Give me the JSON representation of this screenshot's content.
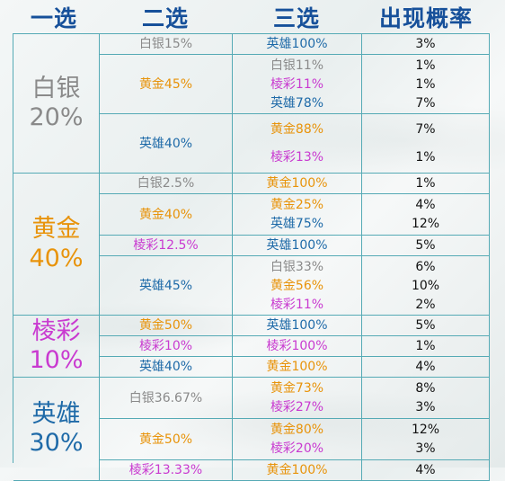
{
  "header": {
    "col1": "一选",
    "col2": "二选",
    "col3": "三选",
    "col4": "出现概率"
  },
  "tiers": {
    "silver": {
      "name": "白银",
      "pct": "20%"
    },
    "gold": {
      "name": "黄金",
      "pct": "40%"
    },
    "prism": {
      "name": "棱彩",
      "pct": "10%"
    },
    "hero": {
      "name": "英雄",
      "pct": "30%"
    }
  },
  "second": [
    "白银15%",
    "黄金45%",
    "英雄40%",
    "白银2.5%",
    "黄金40%",
    "棱彩12.5%",
    "英雄45%",
    "黄金50%",
    "棱彩10%",
    "英雄40%",
    "白银36.67%",
    "黄金50%",
    "棱彩13.33%"
  ],
  "third": [
    "英雄100%",
    "白银11%",
    "棱彩11%",
    "英雄78%",
    "黄金88%",
    "棱彩13%",
    "黄金100%",
    "黄金25%",
    "英雄75%",
    "英雄100%",
    "白银33%",
    "黄金56%",
    "棱彩11%",
    "英雄100%",
    "棱彩100%",
    "黄金100%",
    "黄金73%",
    "棱彩27%",
    "黄金80%",
    "棱彩20%",
    "黄金100%"
  ],
  "prob": [
    "3%",
    "1%",
    "1%",
    "7%",
    "7%",
    "1%",
    "1%",
    "4%",
    "12%",
    "5%",
    "6%",
    "10%",
    "2%",
    "5%",
    "1%",
    "4%",
    "8%",
    "3%",
    "12%",
    "3%",
    "4%"
  ],
  "colors": {
    "silver": "#8a8a8a",
    "gold": "#e8930a",
    "prism": "#c93ad0",
    "hero": "#1e6aa8",
    "header": "#16509a",
    "grid": "#55aab5"
  }
}
